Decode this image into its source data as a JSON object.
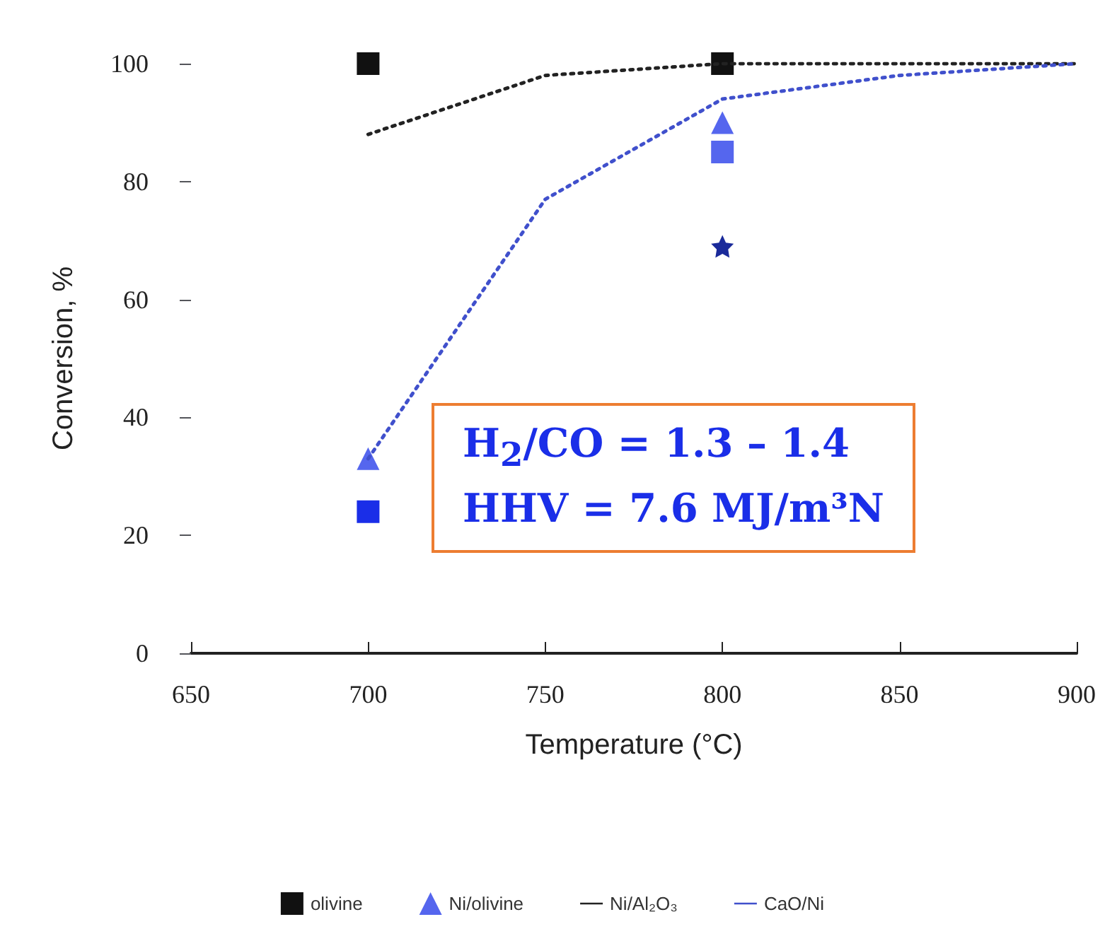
{
  "chart_data": {
    "type": "scatter",
    "xlabel": "Temperature (°C)",
    "ylabel": "Conversion, %",
    "xlim": [
      650,
      900
    ],
    "xticks": [
      650,
      700,
      750,
      800,
      850,
      900
    ],
    "ylim": [
      0,
      100
    ],
    "yticks": [
      0,
      20,
      40,
      60,
      80,
      100
    ],
    "grid": false,
    "legend": "bottom",
    "annotations": [
      "H$_{2}$/CO = 1.3 – 1.4",
      "HHV = 7.6 MJ/m³N"
    ],
    "series": [
      {
        "name": "olivine",
        "marker": "square",
        "x": [
          700,
          700,
          800,
          800
        ],
        "values": [
          100,
          24,
          100,
          85
        ],
        "colors": [
          "#111111",
          "#1a2ee8",
          "#111111",
          "#5566ee"
        ]
      },
      {
        "name": "Ni/olivine",
        "marker": "triangle",
        "color": "#5566ee",
        "x": [
          700,
          800
        ],
        "values": [
          33,
          90
        ]
      },
      {
        "marker": "star",
        "color": "#1a2a9a",
        "x": [
          800
        ],
        "values": [
          69
        ]
      },
      {
        "name": "Ni/Al₂O₃",
        "type": "line",
        "line_style": "dotted",
        "marker": "none",
        "color": "#222222",
        "x": [
          700,
          750,
          800,
          850,
          900
        ],
        "values": [
          88,
          98,
          100,
          100,
          100
        ]
      },
      {
        "name": "CaO/Ni",
        "type": "line",
        "line_style": "dotted",
        "marker": "none",
        "color": "#4050cc",
        "x": [
          700,
          750,
          800,
          850,
          900
        ],
        "values": [
          33,
          77,
          94,
          98,
          100
        ]
      }
    ]
  }
}
